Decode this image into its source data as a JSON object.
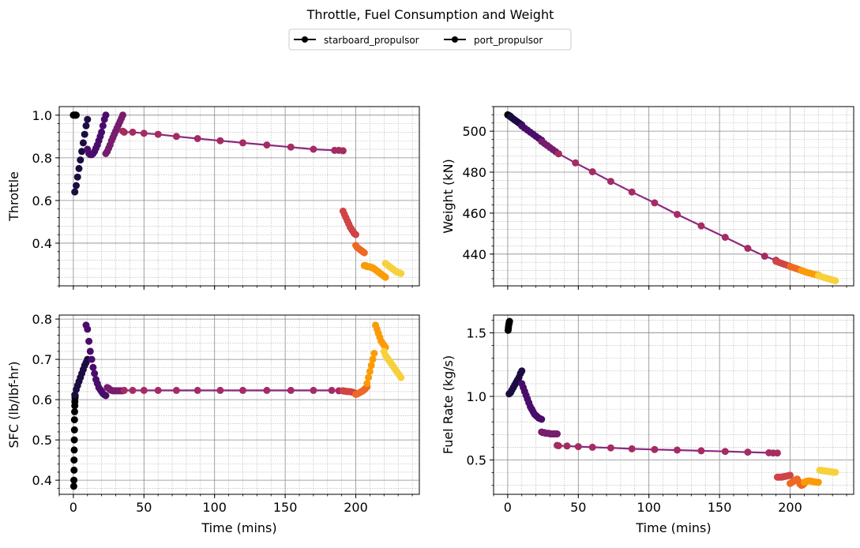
{
  "figure": {
    "suptitle": "Throttle, Fuel Consumption and Weight",
    "legend": [
      {
        "label": "starboard_propulsor",
        "color": "#000000"
      },
      {
        "label": "port_propulsor",
        "color": "#000000"
      }
    ],
    "colormap": "inferno",
    "segment_colors": [
      "#000004",
      "#1b0c41",
      "#4a0c6b",
      "#781c6d",
      "#a52c60",
      "#cf4446",
      "#ed6925",
      "#fb9b06",
      "#f7d13d"
    ],
    "line_color": "#8c2981",
    "grid": true
  },
  "chart_data": [
    {
      "type": "scatter",
      "panel": "throttle",
      "title": "",
      "xlabel": "",
      "ylabel": "Throttle",
      "xlim": [
        -10,
        245
      ],
      "ylim": [
        0.2,
        1.04
      ],
      "xticks": [
        0,
        50,
        100,
        150,
        200
      ],
      "yticks": [
        0.4,
        0.6,
        0.8,
        1.0
      ],
      "ytick_labels": [
        "0.4",
        "0.6",
        "0.8",
        "1.0"
      ],
      "series": [
        {
          "segment": 0,
          "x": [
            0,
            0.5,
            1,
            1.5,
            2
          ],
          "y": [
            1.0,
            1.0,
            1.0,
            1.0,
            1.0
          ]
        },
        {
          "segment": 1,
          "x": [
            1,
            2,
            3,
            4,
            5,
            6,
            7,
            8,
            9,
            10
          ],
          "y": [
            0.64,
            0.67,
            0.71,
            0.75,
            0.79,
            0.83,
            0.87,
            0.91,
            0.95,
            0.98
          ]
        },
        {
          "segment": 2,
          "x": [
            10,
            11,
            12,
            13,
            14,
            15,
            16,
            17,
            18,
            19,
            20,
            21,
            22,
            23
          ],
          "y": [
            0.84,
            0.82,
            0.815,
            0.815,
            0.82,
            0.83,
            0.845,
            0.86,
            0.88,
            0.9,
            0.92,
            0.95,
            0.98,
            1.0
          ]
        },
        {
          "segment": 3,
          "x": [
            23,
            24,
            25,
            26,
            27,
            28,
            29,
            30,
            31,
            32,
            33,
            34,
            35
          ],
          "y": [
            0.82,
            0.83,
            0.845,
            0.86,
            0.88,
            0.895,
            0.91,
            0.925,
            0.94,
            0.955,
            0.97,
            0.985,
            1.0
          ]
        },
        {
          "segment": 4,
          "x": [
            35,
            36,
            42,
            50,
            60,
            73,
            88,
            104,
            120,
            137,
            154,
            170,
            185,
            188,
            191
          ],
          "y": [
            0.925,
            0.92,
            0.92,
            0.915,
            0.91,
            0.9,
            0.89,
            0.88,
            0.87,
            0.86,
            0.85,
            0.84,
            0.835,
            0.835,
            0.833
          ]
        },
        {
          "segment": 5,
          "x": [
            191,
            192,
            193,
            194,
            195,
            196,
            197,
            198,
            199,
            200
          ],
          "y": [
            0.55,
            0.535,
            0.52,
            0.505,
            0.49,
            0.475,
            0.465,
            0.455,
            0.445,
            0.44
          ]
        },
        {
          "segment": 6,
          "x": [
            200,
            201,
            202,
            203,
            204,
            205,
            206
          ],
          "y": [
            0.39,
            0.38,
            0.375,
            0.37,
            0.365,
            0.36,
            0.355
          ]
        },
        {
          "segment": 7,
          "x": [
            206,
            207,
            208,
            209,
            210,
            211,
            212,
            213,
            214,
            215,
            216,
            217,
            218,
            219,
            220,
            221
          ],
          "y": [
            0.295,
            0.295,
            0.29,
            0.29,
            0.29,
            0.285,
            0.285,
            0.28,
            0.275,
            0.27,
            0.265,
            0.26,
            0.255,
            0.25,
            0.245,
            0.24
          ]
        },
        {
          "segment": 8,
          "x": [
            221,
            222,
            223,
            224,
            225,
            226,
            227,
            228,
            229,
            230,
            231,
            232
          ],
          "y": [
            0.305,
            0.3,
            0.295,
            0.29,
            0.285,
            0.28,
            0.275,
            0.27,
            0.265,
            0.263,
            0.26,
            0.258
          ]
        }
      ]
    },
    {
      "type": "line",
      "panel": "weight",
      "title": "",
      "xlabel": "",
      "ylabel": "Weight (kN)",
      "xlim": [
        -10,
        245
      ],
      "ylim": [
        424.5,
        512
      ],
      "xticks": [
        0,
        50,
        100,
        150,
        200
      ],
      "yticks": [
        440,
        460,
        480,
        500
      ],
      "ytick_labels": [
        "440",
        "460",
        "480",
        "500"
      ],
      "series": [
        {
          "segment": 0,
          "x": [
            0,
            0.5,
            1,
            1.5,
            2
          ],
          "y": [
            508,
            507.8,
            507.6,
            507.4,
            507.2
          ]
        },
        {
          "segment": 1,
          "x": [
            2,
            3,
            4,
            5,
            6,
            7,
            8,
            9,
            10
          ],
          "y": [
            507,
            506.5,
            506,
            505.5,
            505,
            504.5,
            504,
            503.5,
            503
          ]
        },
        {
          "segment": 2,
          "x": [
            10,
            12,
            14,
            16,
            18,
            20,
            22,
            24
          ],
          "y": [
            502.5,
            501.5,
            500.5,
            499.5,
            498.5,
            497.5,
            496.5,
            495.6
          ]
        },
        {
          "segment": 3,
          "x": [
            24,
            26,
            28,
            30,
            32,
            34,
            36
          ],
          "y": [
            495,
            494,
            493,
            492,
            491,
            490,
            489
          ]
        },
        {
          "segment": 4,
          "x": [
            36,
            48,
            60,
            73,
            88,
            104,
            120,
            137,
            154,
            170,
            182,
            190
          ],
          "y": [
            489,
            484.5,
            480.2,
            475.5,
            470.3,
            465,
            459.4,
            453.8,
            448.2,
            442.8,
            439,
            437
          ]
        },
        {
          "segment": 5,
          "x": [
            190,
            192,
            194,
            196,
            198,
            200
          ],
          "y": [
            436.5,
            436,
            435.5,
            435,
            434.5,
            434
          ]
        },
        {
          "segment": 6,
          "x": [
            200,
            202,
            204,
            206,
            208
          ],
          "y": [
            434,
            433.5,
            433,
            432.5,
            432
          ]
        },
        {
          "segment": 7,
          "x": [
            208,
            210,
            212,
            214,
            216,
            218,
            220
          ],
          "y": [
            432,
            431.5,
            431,
            430.7,
            430.3,
            430,
            429.8
          ]
        },
        {
          "segment": 8,
          "x": [
            220,
            222,
            224,
            226,
            228,
            230,
            232
          ],
          "y": [
            429.5,
            429,
            428.6,
            428.2,
            427.8,
            427.4,
            427
          ]
        }
      ]
    },
    {
      "type": "scatter",
      "panel": "sfc",
      "title": "",
      "xlabel": "Time (mins)",
      "ylabel": "SFC (lb/lbf-hr)",
      "xlim": [
        -10,
        245
      ],
      "ylim": [
        0.365,
        0.81
      ],
      "xticks": [
        0,
        50,
        100,
        150,
        200
      ],
      "xtick_labels": [
        "0",
        "50",
        "100",
        "150",
        "200"
      ],
      "yticks": [
        0.4,
        0.5,
        0.6,
        0.7,
        0.8
      ],
      "ytick_labels": [
        "0.4",
        "0.5",
        "0.6",
        "0.7",
        "0.8"
      ],
      "series": [
        {
          "segment": 0,
          "x": [
            0.3,
            0.4,
            0.5,
            0.5,
            0.6,
            0.7,
            0.8,
            0.8,
            0.9,
            1.0,
            1.1,
            1.2,
            1.3
          ],
          "y": [
            0.385,
            0.4,
            0.425,
            0.45,
            0.475,
            0.5,
            0.525,
            0.55,
            0.57,
            0.585,
            0.595,
            0.605,
            0.61
          ]
        },
        {
          "segment": 1,
          "x": [
            1,
            2,
            3,
            4,
            5,
            6,
            7,
            8,
            9,
            10
          ],
          "y": [
            0.612,
            0.625,
            0.635,
            0.645,
            0.655,
            0.665,
            0.675,
            0.685,
            0.692,
            0.7
          ]
        },
        {
          "segment": 2,
          "x": [
            9,
            10,
            11,
            12,
            13,
            14,
            15,
            16,
            17,
            18,
            19,
            20,
            21,
            22,
            23
          ],
          "y": [
            0.785,
            0.775,
            0.745,
            0.72,
            0.7,
            0.68,
            0.665,
            0.65,
            0.64,
            0.63,
            0.625,
            0.62,
            0.615,
            0.612,
            0.61
          ]
        },
        {
          "segment": 3,
          "x": [
            24,
            25,
            26,
            27,
            28,
            29,
            30,
            31,
            32,
            33,
            34,
            35
          ],
          "y": [
            0.63,
            0.628,
            0.625,
            0.623,
            0.622,
            0.622,
            0.622,
            0.622,
            0.622,
            0.622,
            0.622,
            0.622
          ]
        },
        {
          "segment": 4,
          "x": [
            36,
            42,
            50,
            60,
            73,
            88,
            104,
            120,
            137,
            154,
            170,
            183,
            188,
            191
          ],
          "y": [
            0.623,
            0.623,
            0.623,
            0.623,
            0.623,
            0.623,
            0.623,
            0.623,
            0.623,
            0.623,
            0.623,
            0.623,
            0.622,
            0.622
          ]
        },
        {
          "segment": 5,
          "x": [
            191,
            192,
            193,
            194,
            195,
            196,
            197,
            198,
            199,
            200
          ],
          "y": [
            0.622,
            0.621,
            0.621,
            0.62,
            0.62,
            0.62,
            0.619,
            0.618,
            0.617,
            0.616
          ]
        },
        {
          "segment": 6,
          "x": [
            200,
            201,
            202,
            203,
            204,
            205,
            206,
            207,
            208
          ],
          "y": [
            0.613,
            0.614,
            0.616,
            0.618,
            0.62,
            0.622,
            0.625,
            0.628,
            0.632
          ]
        },
        {
          "segment": 7,
          "x": [
            208,
            209,
            210,
            211,
            212,
            213,
            214,
            215,
            216,
            217,
            218,
            219,
            220,
            221
          ],
          "y": [
            0.64,
            0.655,
            0.67,
            0.685,
            0.7,
            0.715,
            0.785,
            0.775,
            0.765,
            0.755,
            0.745,
            0.74,
            0.735,
            0.73
          ]
        },
        {
          "segment": 8,
          "x": [
            220,
            221,
            222,
            223,
            224,
            225,
            226,
            227,
            228,
            229,
            230,
            231,
            232
          ],
          "y": [
            0.72,
            0.71,
            0.705,
            0.7,
            0.695,
            0.69,
            0.685,
            0.68,
            0.675,
            0.67,
            0.665,
            0.66,
            0.655
          ]
        }
      ]
    },
    {
      "type": "scatter",
      "panel": "fuel_rate",
      "title": "",
      "xlabel": "Time (mins)",
      "ylabel": "Fuel Rate (kg/s)",
      "xlim": [
        -10,
        245
      ],
      "ylim": [
        0.23,
        1.64
      ],
      "xticks": [
        0,
        50,
        100,
        150,
        200
      ],
      "xtick_labels": [
        "0",
        "50",
        "100",
        "150",
        "200"
      ],
      "yticks": [
        0.5,
        1.0,
        1.5
      ],
      "ytick_labels": [
        "0.5",
        "1.0",
        "1.5"
      ],
      "series": [
        {
          "segment": 0,
          "x": [
            0.3,
            0.5,
            0.7,
            0.9,
            1.1,
            1.3
          ],
          "y": [
            1.52,
            1.54,
            1.56,
            1.57,
            1.58,
            1.59
          ]
        },
        {
          "segment": 1,
          "x": [
            1,
            2,
            3,
            4,
            5,
            6,
            7,
            8,
            9,
            10
          ],
          "y": [
            1.02,
            1.03,
            1.05,
            1.07,
            1.09,
            1.11,
            1.13,
            1.15,
            1.18,
            1.2
          ]
        },
        {
          "segment": 2,
          "x": [
            10,
            11,
            12,
            13,
            14,
            15,
            16,
            17,
            18,
            19,
            20,
            21,
            22,
            23,
            24
          ],
          "y": [
            1.1,
            1.07,
            1.04,
            1.01,
            0.98,
            0.95,
            0.92,
            0.9,
            0.88,
            0.86,
            0.85,
            0.84,
            0.83,
            0.825,
            0.82
          ]
        },
        {
          "segment": 3,
          "x": [
            24,
            25,
            26,
            27,
            28,
            29,
            30,
            31,
            32,
            33,
            34,
            35
          ],
          "y": [
            0.72,
            0.715,
            0.715,
            0.71,
            0.71,
            0.71,
            0.705,
            0.705,
            0.705,
            0.705,
            0.705,
            0.705
          ]
        },
        {
          "segment": 4,
          "x": [
            35,
            36,
            42,
            50,
            60,
            73,
            88,
            104,
            120,
            137,
            154,
            170,
            185,
            188,
            191
          ],
          "y": [
            0.615,
            0.612,
            0.61,
            0.605,
            0.6,
            0.595,
            0.588,
            0.582,
            0.578,
            0.572,
            0.567,
            0.562,
            0.557,
            0.555,
            0.555
          ]
        },
        {
          "segment": 5,
          "x": [
            191,
            192,
            193,
            194,
            195,
            196,
            197,
            198,
            199,
            200
          ],
          "y": [
            0.365,
            0.365,
            0.365,
            0.365,
            0.368,
            0.37,
            0.372,
            0.375,
            0.378,
            0.38
          ]
        },
        {
          "segment": 6,
          "x": [
            200,
            201,
            202,
            203,
            204,
            205,
            206,
            207,
            208,
            209,
            210
          ],
          "y": [
            0.315,
            0.322,
            0.33,
            0.338,
            0.345,
            0.35,
            0.33,
            0.31,
            0.3,
            0.305,
            0.315
          ]
        },
        {
          "segment": 7,
          "x": [
            210,
            211,
            212,
            213,
            214,
            215,
            216,
            217,
            218,
            219,
            220
          ],
          "y": [
            0.325,
            0.33,
            0.333,
            0.335,
            0.335,
            0.333,
            0.33,
            0.328,
            0.326,
            0.325,
            0.325
          ]
        },
        {
          "segment": 8,
          "x": [
            221,
            222,
            223,
            224,
            225,
            226,
            227,
            228,
            229,
            230,
            231,
            232
          ],
          "y": [
            0.42,
            0.418,
            0.416,
            0.415,
            0.413,
            0.412,
            0.41,
            0.408,
            0.407,
            0.405,
            0.404,
            0.403
          ]
        }
      ]
    }
  ]
}
